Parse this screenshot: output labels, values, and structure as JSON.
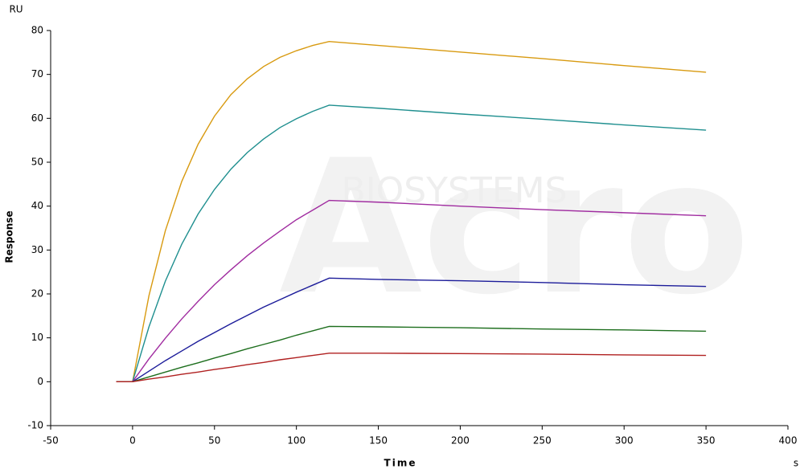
{
  "chart_data": {
    "type": "line",
    "y_unit": "RU",
    "y_label": "Response",
    "x_label": "Time",
    "x_unit": "s",
    "watermark": [
      "Acro",
      "BIOSYSTEMS"
    ],
    "x": [
      -10,
      0,
      10,
      20,
      30,
      40,
      50,
      60,
      70,
      80,
      90,
      100,
      110,
      120,
      150,
      200,
      250,
      300,
      350
    ],
    "series": [
      {
        "color": "#d89a10",
        "values": [
          0,
          0,
          19.6,
          34.4,
          45.6,
          54.1,
          60.5,
          65.4,
          69.0,
          71.8,
          73.9,
          75.4,
          76.6,
          77.5,
          76.6,
          75.1,
          73.6,
          72.0,
          70.5
        ]
      },
      {
        "color": "#1f8f8f",
        "values": [
          0,
          0,
          12.5,
          22.9,
          31.3,
          38.2,
          43.8,
          48.4,
          52.2,
          55.3,
          57.9,
          59.9,
          61.6,
          63.0,
          62.3,
          61.0,
          59.8,
          58.5,
          57.3
        ]
      },
      {
        "color": "#a02ca0",
        "values": [
          0,
          0,
          5.2,
          9.9,
          14.3,
          18.3,
          22.1,
          25.5,
          28.7,
          31.6,
          34.3,
          36.9,
          39.1,
          41.3,
          40.9,
          40.0,
          39.2,
          38.5,
          37.8
        ]
      },
      {
        "color": "#1c1c9a",
        "values": [
          0,
          0,
          2.4,
          4.8,
          7.0,
          9.2,
          11.2,
          13.2,
          15.1,
          17.0,
          18.7,
          20.4,
          22.0,
          23.6,
          23.3,
          23.0,
          22.6,
          22.1,
          21.7
        ]
      },
      {
        "color": "#1d6e1d",
        "values": [
          0,
          0,
          1.1,
          2.2,
          3.3,
          4.3,
          5.4,
          6.4,
          7.5,
          8.5,
          9.5,
          10.6,
          11.6,
          12.6,
          12.5,
          12.3,
          12.0,
          11.8,
          11.5
        ]
      },
      {
        "color": "#b02020",
        "values": [
          0,
          0,
          0.6,
          1.1,
          1.7,
          2.2,
          2.8,
          3.3,
          3.9,
          4.4,
          5.0,
          5.5,
          6.0,
          6.5,
          6.5,
          6.4,
          6.3,
          6.1,
          6.0
        ]
      }
    ],
    "xlim": [
      -50,
      400
    ],
    "xticks": [
      -50,
      0,
      50,
      100,
      150,
      200,
      250,
      300,
      350,
      400
    ],
    "ylim": [
      -10,
      80
    ],
    "yticks": [
      -10,
      0,
      10,
      20,
      30,
      40,
      50,
      60,
      70,
      80
    ],
    "grid": false
  }
}
